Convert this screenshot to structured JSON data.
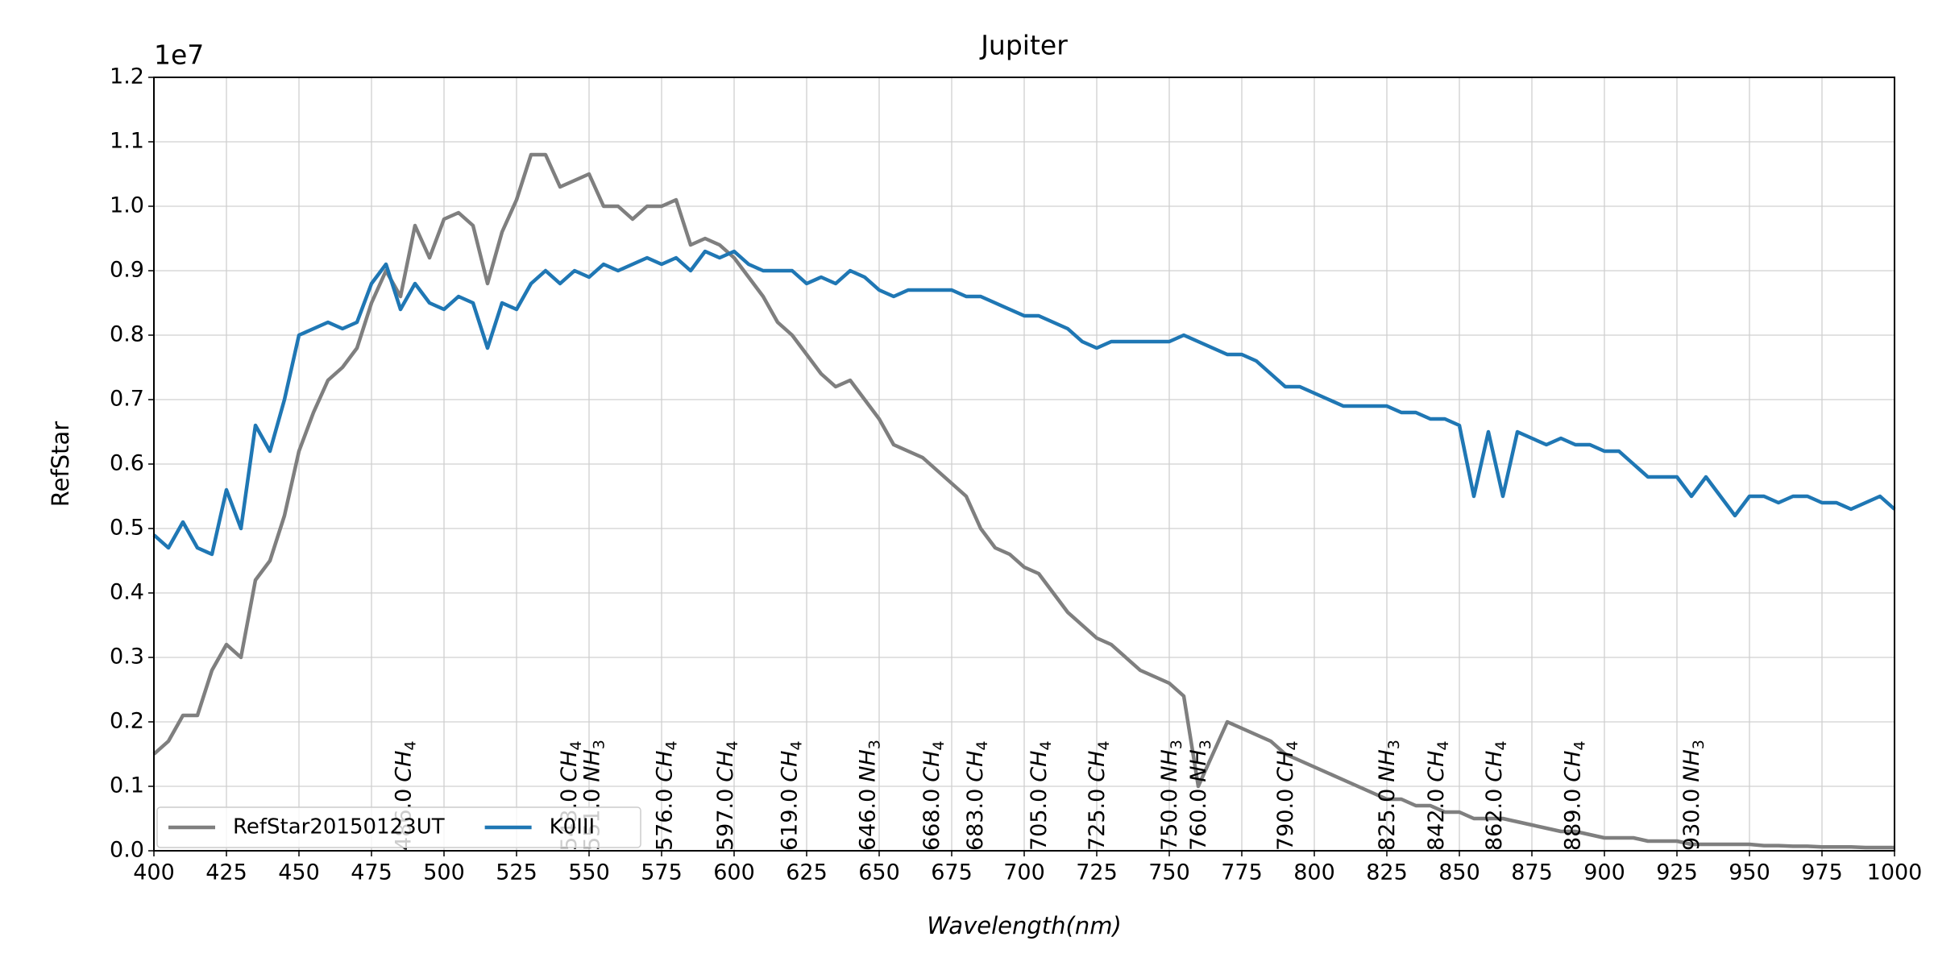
{
  "chart_data": {
    "type": "line",
    "title": "Jupiter",
    "xlabel": "Wavelength(nm)",
    "ylabel": "RefStar",
    "y_offset_label": "1e7",
    "xlim": [
      400,
      1000
    ],
    "ylim": [
      0,
      1.2
    ],
    "xticks": [
      400,
      425,
      450,
      475,
      500,
      525,
      550,
      575,
      600,
      625,
      650,
      675,
      700,
      725,
      750,
      775,
      800,
      825,
      850,
      875,
      900,
      925,
      950,
      975,
      1000
    ],
    "yticks": [
      {
        "value": 0,
        "label": "0.0"
      },
      0.1,
      0.2,
      0.3,
      0.4,
      0.5,
      0.6,
      0.7,
      0.8,
      0.9,
      {
        "value": 1,
        "label": "1.0"
      },
      1.1,
      1.2
    ],
    "grid": true,
    "legend": "lower left",
    "x": [
      400,
      405,
      410,
      415,
      420,
      425,
      430,
      435,
      440,
      445,
      450,
      455,
      460,
      465,
      470,
      475,
      480,
      485,
      490,
      495,
      500,
      505,
      510,
      515,
      520,
      525,
      530,
      535,
      540,
      545,
      550,
      555,
      560,
      565,
      570,
      575,
      580,
      585,
      590,
      595,
      600,
      605,
      610,
      615,
      620,
      625,
      630,
      635,
      640,
      645,
      650,
      655,
      660,
      665,
      670,
      675,
      680,
      685,
      690,
      695,
      700,
      705,
      710,
      715,
      720,
      725,
      730,
      735,
      740,
      745,
      750,
      755,
      760,
      765,
      770,
      775,
      780,
      785,
      790,
      795,
      800,
      805,
      810,
      815,
      820,
      825,
      830,
      835,
      840,
      845,
      850,
      855,
      860,
      865,
      870,
      875,
      880,
      885,
      890,
      895,
      900,
      905,
      910,
      915,
      920,
      925,
      930,
      935,
      940,
      945,
      950,
      955,
      960,
      965,
      970,
      975,
      980,
      985,
      990,
      995,
      1000
    ],
    "series": [
      {
        "name": "RefStar20150123UT",
        "color": "#7f7f7f",
        "values": [
          0.15,
          0.17,
          0.21,
          0.21,
          0.28,
          0.32,
          0.3,
          0.42,
          0.45,
          0.52,
          0.62,
          0.68,
          0.73,
          0.75,
          0.78,
          0.85,
          0.9,
          0.86,
          0.97,
          0.92,
          0.98,
          0.99,
          0.97,
          0.88,
          0.96,
          1.01,
          1.08,
          1.08,
          1.03,
          1.04,
          1.05,
          1.0,
          1.0,
          0.98,
          1.0,
          1.0,
          1.01,
          0.94,
          0.95,
          0.94,
          0.92,
          0.89,
          0.86,
          0.82,
          0.8,
          0.77,
          0.74,
          0.72,
          0.73,
          0.7,
          0.67,
          0.63,
          0.62,
          0.61,
          0.59,
          0.57,
          0.55,
          0.5,
          0.47,
          0.46,
          0.44,
          0.43,
          0.4,
          0.37,
          0.35,
          0.33,
          0.32,
          0.3,
          0.28,
          0.27,
          0.26,
          0.24,
          0.1,
          0.15,
          0.2,
          0.19,
          0.18,
          0.17,
          0.15,
          0.14,
          0.13,
          0.12,
          0.11,
          0.1,
          0.09,
          0.08,
          0.08,
          0.07,
          0.07,
          0.06,
          0.06,
          0.05,
          0.05,
          0.05,
          0.045,
          0.04,
          0.035,
          0.03,
          0.03,
          0.025,
          0.02,
          0.02,
          0.02,
          0.015,
          0.015,
          0.015,
          0.01,
          0.01,
          0.01,
          0.01,
          0.01,
          0.008,
          0.008,
          0.007,
          0.007,
          0.006,
          0.006,
          0.006,
          0.005,
          0.005,
          0.005
        ]
      },
      {
        "name": "K0III",
        "color": "#1f77b4",
        "values": [
          0.49,
          0.47,
          0.51,
          0.47,
          0.46,
          0.56,
          0.5,
          0.66,
          0.62,
          0.7,
          0.8,
          0.81,
          0.82,
          0.81,
          0.82,
          0.88,
          0.91,
          0.84,
          0.88,
          0.85,
          0.84,
          0.86,
          0.85,
          0.78,
          0.85,
          0.84,
          0.88,
          0.9,
          0.88,
          0.9,
          0.89,
          0.91,
          0.9,
          0.91,
          0.92,
          0.91,
          0.92,
          0.9,
          0.93,
          0.92,
          0.93,
          0.91,
          0.9,
          0.9,
          0.9,
          0.88,
          0.89,
          0.88,
          0.9,
          0.89,
          0.87,
          0.86,
          0.87,
          0.87,
          0.87,
          0.87,
          0.86,
          0.86,
          0.85,
          0.84,
          0.83,
          0.83,
          0.82,
          0.81,
          0.79,
          0.78,
          0.79,
          0.79,
          0.79,
          0.79,
          0.79,
          0.8,
          0.79,
          0.78,
          0.77,
          0.77,
          0.76,
          0.74,
          0.72,
          0.72,
          0.71,
          0.7,
          0.69,
          0.69,
          0.69,
          0.69,
          0.68,
          0.68,
          0.67,
          0.67,
          0.66,
          0.55,
          0.65,
          0.55,
          0.65,
          0.64,
          0.63,
          0.64,
          0.63,
          0.63,
          0.62,
          0.62,
          0.6,
          0.58,
          0.58,
          0.58,
          0.55,
          0.58,
          0.55,
          0.52,
          0.55,
          0.55,
          0.54,
          0.55,
          0.55,
          0.54,
          0.54,
          0.53,
          0.54,
          0.55,
          0.53
        ]
      }
    ],
    "annotations": [
      {
        "value": 486,
        "label": "486.0",
        "gas": "CH",
        "sub": "4"
      },
      {
        "value": 543,
        "label": "543.0",
        "gas": "CH",
        "sub": "4"
      },
      {
        "value": 551,
        "label": "551.0",
        "gas": "NH",
        "sub": "3"
      },
      {
        "value": 576,
        "label": "576.0",
        "gas": "CH",
        "sub": "4"
      },
      {
        "value": 597,
        "label": "597.0",
        "gas": "CH",
        "sub": "4"
      },
      {
        "value": 619,
        "label": "619.0",
        "gas": "CH",
        "sub": "4"
      },
      {
        "value": 646,
        "label": "646.0",
        "gas": "NH",
        "sub": "3"
      },
      {
        "value": 668,
        "label": "668.0",
        "gas": "CH",
        "sub": "4"
      },
      {
        "value": 683,
        "label": "683.0",
        "gas": "CH",
        "sub": "4"
      },
      {
        "value": 705,
        "label": "705.0",
        "gas": "CH",
        "sub": "4"
      },
      {
        "value": 725,
        "label": "725.0",
        "gas": "CH",
        "sub": "4"
      },
      {
        "value": 750,
        "label": "750.0",
        "gas": "NH",
        "sub": "3"
      },
      {
        "value": 760,
        "label": "760.0",
        "gas": "NH",
        "sub": "3"
      },
      {
        "value": 790,
        "label": "790.0",
        "gas": "CH",
        "sub": "4"
      },
      {
        "value": 825,
        "label": "825.0",
        "gas": "NH",
        "sub": "3"
      },
      {
        "value": 842,
        "label": "842.0",
        "gas": "CH",
        "sub": "4"
      },
      {
        "value": 862,
        "label": "862.0",
        "gas": "CH",
        "sub": "4"
      },
      {
        "value": 889,
        "label": "889.0",
        "gas": "CH",
        "sub": "4"
      },
      {
        "value": 930,
        "label": "930.0",
        "gas": "NH",
        "sub": "3"
      }
    ]
  }
}
